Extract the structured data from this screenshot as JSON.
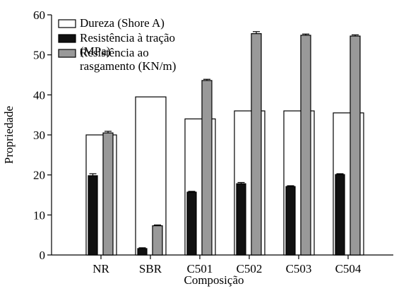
{
  "chart_data": {
    "type": "bar",
    "x_label": "Composição",
    "y_label": "Propriedade",
    "categories": [
      "NR",
      "SBR",
      "C501",
      "C502",
      "C503",
      "C504"
    ],
    "series": [
      {
        "name": "Dureza (Shore A)",
        "color": "#ffffff",
        "values": [
          30,
          39.5,
          34,
          36,
          36,
          35.5
        ]
      },
      {
        "name": "Resistência à tração (MPa)",
        "color": "#111111",
        "values": [
          19.8,
          1.6,
          15.7,
          17.8,
          17.1,
          20.1
        ],
        "errors": [
          0.5,
          0.2,
          0.2,
          0.3,
          0.2,
          0.2
        ]
      },
      {
        "name": "Resistência ao rasgamento (KN/m)",
        "color": "#999999",
        "values": [
          30.5,
          7.3,
          43.6,
          55.3,
          54.9,
          54.7
        ],
        "errors": [
          0.4,
          0.2,
          0.3,
          0.5,
          0.3,
          0.3
        ]
      }
    ],
    "ylim": [
      0,
      60
    ],
    "yticks": [
      0,
      10,
      20,
      30,
      40,
      50,
      60
    ],
    "legend": "upper left"
  }
}
